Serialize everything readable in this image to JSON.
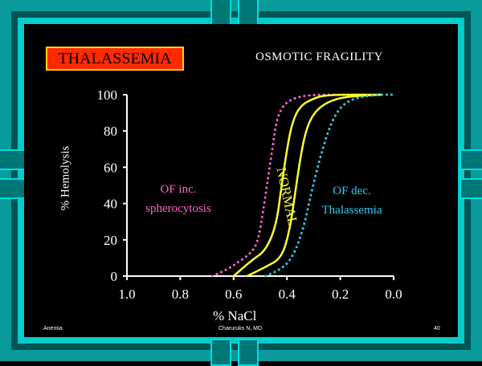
{
  "slide": {
    "title": "THALASSEMIA",
    "subtitle": "OSMOTIC FRAGILITY",
    "footer_left": "Anemia",
    "footer_center": "Charuruks N, MD",
    "footer_right": "40"
  },
  "colors": {
    "background": "#000000",
    "frame": "#00cccc",
    "title_box": "#ff2a00",
    "title_border": "#ffd000",
    "normal": "#ffff33",
    "spherocytosis": "#ff66cc",
    "thalassemia": "#33ccee"
  },
  "chart_data": {
    "type": "line",
    "title": "OSMOTIC FRAGILITY",
    "xlabel": "% NaCl",
    "ylabel": "% Hemolysis",
    "xlim": [
      1.0,
      0.0
    ],
    "ylim": [
      0,
      100
    ],
    "x_ticks": [
      "1.0",
      "0.8",
      "0.6",
      "0.4",
      "0.2",
      "0.0"
    ],
    "y_ticks": [
      "0",
      "20",
      "40",
      "60",
      "80",
      "100"
    ],
    "grid": false,
    "series": [
      {
        "key": "spherocytosis",
        "style": "dotted",
        "color": "#ff66cc",
        "points": [
          [
            0.68,
            0
          ],
          [
            0.62,
            4
          ],
          [
            0.58,
            8
          ],
          [
            0.54,
            12
          ],
          [
            0.51,
            18
          ],
          [
            0.49,
            35
          ],
          [
            0.47,
            55
          ],
          [
            0.45,
            75
          ],
          [
            0.44,
            85
          ],
          [
            0.42,
            93
          ],
          [
            0.39,
            97
          ],
          [
            0.35,
            99
          ],
          [
            0.3,
            100
          ],
          [
            0.1,
            100
          ]
        ]
      },
      {
        "key": "normal-left",
        "style": "solid",
        "color": "#ffff33",
        "points": [
          [
            0.6,
            0
          ],
          [
            0.53,
            9
          ],
          [
            0.48,
            14
          ],
          [
            0.44,
            28
          ],
          [
            0.42,
            50
          ],
          [
            0.4,
            70
          ],
          [
            0.38,
            85
          ],
          [
            0.35,
            94
          ],
          [
            0.3,
            98
          ],
          [
            0.25,
            100
          ],
          [
            0.05,
            100
          ]
        ]
      },
      {
        "key": "normal-right",
        "style": "solid",
        "color": "#ffff33",
        "points": [
          [
            0.55,
            0
          ],
          [
            0.48,
            5
          ],
          [
            0.42,
            10
          ],
          [
            0.39,
            25
          ],
          [
            0.37,
            45
          ],
          [
            0.35,
            65
          ],
          [
            0.33,
            80
          ],
          [
            0.3,
            90
          ],
          [
            0.25,
            96
          ],
          [
            0.18,
            99
          ],
          [
            0.05,
            100
          ]
        ]
      },
      {
        "key": "thalassemia",
        "style": "dotted",
        "color": "#33ccee",
        "points": [
          [
            0.48,
            0
          ],
          [
            0.42,
            4
          ],
          [
            0.38,
            10
          ],
          [
            0.34,
            25
          ],
          [
            0.31,
            45
          ],
          [
            0.28,
            63
          ],
          [
            0.25,
            78
          ],
          [
            0.22,
            89
          ],
          [
            0.18,
            96
          ],
          [
            0.12,
            99
          ],
          [
            0.05,
            100
          ],
          [
            0.0,
            100
          ]
        ]
      }
    ],
    "annotations": [
      {
        "text": "OF inc.",
        "color": "#ff66cc"
      },
      {
        "text": "spherocytosis",
        "color": "#ff66cc"
      },
      {
        "text": "NORMAL",
        "color": "#ffff33"
      },
      {
        "text": "OF dec.",
        "color": "#33ccee"
      },
      {
        "text": "Thalassemia",
        "color": "#33ccee"
      }
    ]
  }
}
